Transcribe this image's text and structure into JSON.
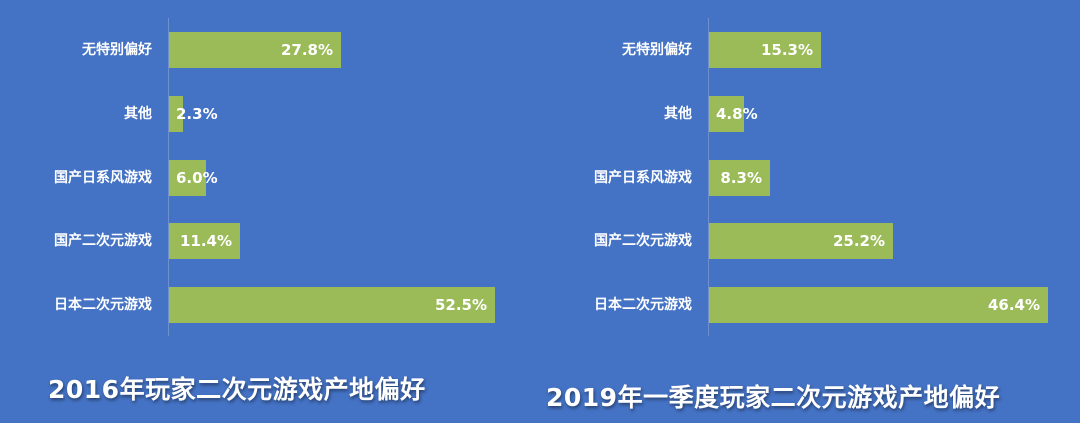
{
  "chart_data": [
    {
      "type": "bar",
      "orientation": "horizontal",
      "title": "2016年玩家二次元游戏产地偏好",
      "categories": [
        "无特别偏好",
        "其他",
        "国产日系风游戏",
        "国产二次元游戏",
        "日本二次元游戏"
      ],
      "values": [
        27.8,
        2.3,
        6.0,
        11.4,
        52.5
      ],
      "value_labels": [
        "27.8%",
        "2.3%",
        "6.0%",
        "11.4%",
        "52.5%"
      ],
      "unit": "%",
      "xlim": [
        0,
        60
      ],
      "grid": false,
      "bar_color": "#9bbb59"
    },
    {
      "type": "bar",
      "orientation": "horizontal",
      "title": "2019年一季度玩家二次元游戏产地偏好",
      "categories": [
        "无特别偏好",
        "其他",
        "国产日系风游戏",
        "国产二次元游戏",
        "日本二次元游戏"
      ],
      "values": [
        15.3,
        4.8,
        8.3,
        25.2,
        46.4
      ],
      "value_labels": [
        "15.3%",
        "4.8%",
        "8.3%",
        "25.2%",
        "46.4%"
      ],
      "unit": "%",
      "xlim": [
        0,
        60
      ],
      "grid": false,
      "bar_color": "#9bbb59"
    }
  ],
  "colors": {
    "background": "#4472c4",
    "bar": "#9bbb59",
    "text": "#ffffff"
  }
}
